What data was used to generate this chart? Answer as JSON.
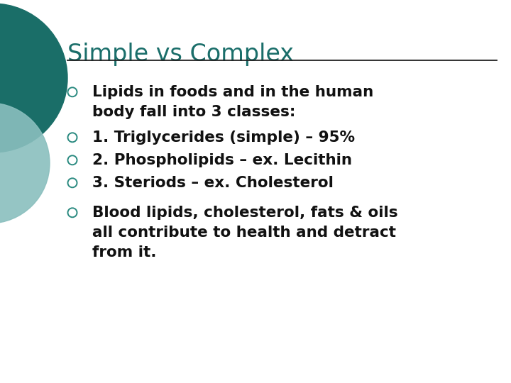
{
  "title": "Simple vs Complex",
  "title_color": "#1a6e6a",
  "title_fontsize": 24,
  "background_color": "#ffffff",
  "line_color": "#222222",
  "bullet_color": "#2a8a80",
  "text_color": "#111111",
  "text_fontsize": 15.5,
  "bullet_items": [
    [
      "Lipids in foods and in the human",
      "body fall into 3 classes:"
    ],
    [
      "1. Triglycerides (simple) – 95%"
    ],
    [
      "2. Phospholipids – ex. Lecithin"
    ],
    [
      "3. Steriods – ex. Cholesterol"
    ],
    [
      "Blood lipids, cholesterol, fats & oils",
      "all contribute to health and detract",
      "from it."
    ]
  ],
  "decor_circle1_color": "#1a6e68",
  "decor_circle2_color": "#8abfbe"
}
